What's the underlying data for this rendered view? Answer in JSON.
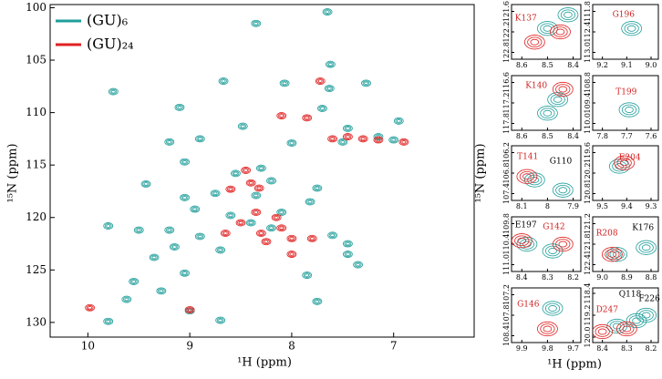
{
  "chart_data": [
    {
      "type": "contour",
      "xlabel": "¹H (ppm)",
      "ylabel": "¹⁵N (ppm)",
      "xlim": [
        10.37,
        6.21
      ],
      "ylim": [
        99.7,
        131.4
      ],
      "xticks": [
        10,
        9,
        8,
        7
      ],
      "yticks": [
        100,
        105,
        110,
        115,
        120,
        125,
        130
      ],
      "legend": "upper left",
      "series": [
        {
          "name": "(GU)₆",
          "color": "#1f9e9a",
          "x": [
            8.35,
            7.65,
            7.62,
            9.75,
            8.67,
            8.07,
            7.63,
            7.27,
            9.1,
            7.7,
            6.95,
            8.48,
            7.45,
            9.2,
            8.9,
            8.0,
            7.15,
            9.05,
            8.55,
            8.3,
            9.43,
            8.2,
            8.75,
            8.35,
            7.75,
            9.05,
            7.82,
            8.95,
            8.6,
            9.8,
            9.5,
            9.2,
            8.9,
            8.2,
            7.6,
            7.45,
            9.35,
            9.15,
            8.7,
            7.45,
            7.35,
            7.85,
            9.05,
            9.55,
            9.28,
            9.62,
            7.75,
            9.0,
            8.7,
            9.8,
            8.4,
            8.1,
            7.5,
            7.0
          ],
          "y": [
            101.5,
            100.4,
            105.4,
            108,
            107,
            107.2,
            107.7,
            107.2,
            109.5,
            109.6,
            110.8,
            111.3,
            111.5,
            112.8,
            112.5,
            112.9,
            112.3,
            114.7,
            115.8,
            115.3,
            116.8,
            116.5,
            117.7,
            117.9,
            117.2,
            118.1,
            118.5,
            119.2,
            119.8,
            120.8,
            121.2,
            121.2,
            121.8,
            121,
            121.7,
            122.5,
            123.8,
            122.8,
            123.1,
            123.5,
            124.5,
            125.5,
            125.3,
            126.1,
            127,
            127.8,
            128,
            128.9,
            129.8,
            129.9,
            120.5,
            119.5,
            112.8,
            112.6
          ]
        },
        {
          "name": "(GU)₂₄",
          "color": "#e02020",
          "x": [
            8.1,
            7.85,
            7.6,
            7.3,
            6.9,
            8.4,
            8.32,
            8.15,
            8.3,
            8.0,
            8.25,
            8.5,
            8.0,
            8.45,
            7.72,
            9.98,
            9.0,
            8.65,
            7.8,
            8.6,
            7.45,
            7.15,
            8.35,
            8.1
          ],
          "y": [
            110.3,
            110.5,
            112.5,
            112.5,
            112.8,
            116.7,
            117.2,
            120,
            121.5,
            122,
            122.3,
            120.5,
            123.5,
            115.5,
            107,
            128.6,
            128.8,
            121.5,
            122,
            117.3,
            112.3,
            112.6,
            119.5,
            121
          ]
        }
      ]
    },
    {
      "type": "contour",
      "annotations": [
        {
          "text": "K137",
          "color": "#d02020"
        }
      ],
      "xlim": [
        8.64,
        8.37
      ],
      "ylim": [
        121.4,
        123.0
      ],
      "xticks": [
        8.6,
        8.5,
        8.4
      ],
      "yticks": [
        121.6,
        122.2,
        122.8
      ],
      "series": [
        {
          "color": "#1f9e9a",
          "x": [
            8.5,
            8.42
          ],
          "y": [
            122.1,
            121.7
          ]
        },
        {
          "color": "#e02020",
          "x": [
            8.55,
            8.45
          ],
          "y": [
            122.5,
            122.2
          ]
        }
      ]
    },
    {
      "type": "contour",
      "annotations": [
        {
          "text": "G196",
          "color": "#d02020"
        }
      ],
      "xlim": [
        9.24,
        8.97
      ],
      "ylim": [
        111.6,
        113.2
      ],
      "xticks": [
        9.2,
        9.1,
        {
          "value": 9,
          "label": "9.0"
        }
      ],
      "yticks": [
        111.8,
        112.4,
        {
          "value": 113,
          "label": "113.0"
        }
      ],
      "series": [
        {
          "color": "#1f9e9a",
          "x": [
            9.08
          ],
          "y": [
            112.3
          ]
        },
        {
          "color": "#e02020",
          "x": [],
          "y": []
        }
      ]
    },
    {
      "type": "contour",
      "annotations": [
        {
          "text": "K140",
          "color": "#d02020"
        }
      ],
      "xlim": [
        8.64,
        8.37
      ],
      "ylim": [
        116.4,
        118.0
      ],
      "xticks": [
        8.6,
        8.5,
        8.4
      ],
      "yticks": [
        116.6,
        117.2,
        117.8
      ],
      "series": [
        {
          "color": "#1f9e9a",
          "x": [
            8.5,
            8.46
          ],
          "y": [
            117.5,
            117.1
          ]
        },
        {
          "color": "#e02020",
          "x": [
            8.44
          ],
          "y": [
            116.8
          ]
        }
      ]
    },
    {
      "type": "contour",
      "annotations": [
        {
          "text": "T199",
          "color": "#d02020"
        }
      ],
      "xlim": [
        7.84,
        7.57
      ],
      "ylim": [
        108.6,
        110.2
      ],
      "xticks": [
        7.8,
        7.7,
        7.6
      ],
      "yticks": [
        108.8,
        109.4,
        {
          "value": 110,
          "label": "110.0"
        }
      ],
      "series": [
        {
          "color": "#1f9e9a",
          "x": [
            7.69
          ],
          "y": [
            109.6
          ]
        },
        {
          "color": "#e02020",
          "x": [],
          "y": []
        }
      ]
    },
    {
      "type": "contour",
      "annotations": [
        {
          "text": "T141",
          "color": "#d02020"
        },
        {
          "text": "G110",
          "color": "#000000"
        }
      ],
      "xlim": [
        8.14,
        7.87
      ],
      "ylim": [
        106.0,
        107.6
      ],
      "xticks": [
        8.1,
        8.0,
        7.9
      ],
      "yticks": [
        106.2,
        106.8,
        107.4
      ],
      "series": [
        {
          "color": "#1f9e9a",
          "x": [
            8.05,
            7.94
          ],
          "y": [
            107.0,
            107.3
          ]
        },
        {
          "color": "#e02020",
          "x": [
            8.08
          ],
          "y": [
            106.9
          ]
        }
      ]
    },
    {
      "type": "contour",
      "annotations": [
        {
          "text": "E204",
          "color": "#d02020"
        }
      ],
      "xlim": [
        9.54,
        9.27
      ],
      "ylim": [
        119.4,
        121.0
      ],
      "xticks": [
        9.5,
        9.4,
        9.3
      ],
      "yticks": [
        119.6,
        120.2,
        120.8
      ],
      "series": [
        {
          "color": "#1f9e9a",
          "x": [
            9.43
          ],
          "y": [
            120.0
          ]
        },
        {
          "color": "#e02020",
          "x": [
            9.41
          ],
          "y": [
            119.9
          ]
        }
      ]
    },
    {
      "type": "contour",
      "annotations": [
        {
          "text": "E197",
          "color": "#000000"
        },
        {
          "text": "G142",
          "color": "#d02020"
        }
      ],
      "xlim": [
        8.44,
        8.17
      ],
      "ylim": [
        109.6,
        111.2
      ],
      "xticks": [
        8.4,
        8.3,
        8.2
      ],
      "yticks": [
        109.8,
        110.4,
        {
          "value": 111,
          "label": "111.0"
        }
      ],
      "series": [
        {
          "color": "#1f9e9a",
          "x": [
            8.38,
            8.28
          ],
          "y": [
            110.4,
            110.6
          ]
        },
        {
          "color": "#e02020",
          "x": [
            8.4,
            8.24
          ],
          "y": [
            110.3,
            110.4
          ]
        }
      ]
    },
    {
      "type": "contour",
      "annotations": [
        {
          "text": "R208",
          "color": "#d02020"
        },
        {
          "text": "K176",
          "color": "#000000"
        }
      ],
      "xlim": [
        9.04,
        8.77
      ],
      "ylim": [
        121.0,
        122.6
      ],
      "xticks": [
        {
          "value": 9,
          "label": "9.0"
        },
        8.9,
        8.8
      ],
      "yticks": [
        121.2,
        121.8,
        122.4
      ],
      "series": [
        {
          "color": "#1f9e9a",
          "x": [
            8.94,
            8.82
          ],
          "y": [
            122.1,
            121.9
          ]
        },
        {
          "color": "#e02020",
          "x": [
            8.96
          ],
          "y": [
            122.1
          ]
        }
      ]
    },
    {
      "type": "contour",
      "annotations": [
        {
          "text": "G146",
          "color": "#d02020"
        }
      ],
      "xlim": [
        9.94,
        9.67
      ],
      "ylim": [
        107.0,
        108.6
      ],
      "xticks": [
        9.9,
        9.8,
        9.7
      ],
      "yticks": [
        107.2,
        107.8,
        108.4
      ],
      "series": [
        {
          "color": "#1f9e9a",
          "x": [
            9.78
          ],
          "y": [
            107.6
          ]
        },
        {
          "color": "#e02020",
          "x": [
            9.8
          ],
          "y": [
            108.2
          ]
        }
      ]
    },
    {
      "type": "contour",
      "annotations": [
        {
          "text": "D247",
          "color": "#d02020"
        },
        {
          "text": "Q118",
          "color": "#000000"
        },
        {
          "text": "F226",
          "color": "#000000"
        }
      ],
      "xlim": [
        8.44,
        8.17
      ],
      "ylim": [
        118.2,
        120.2
      ],
      "xticks": [
        8.4,
        8.3,
        8.2
      ],
      "yticks": [
        118.4,
        119.2,
        {
          "value": 120,
          "label": "120.0"
        }
      ],
      "series": [
        {
          "color": "#1f9e9a",
          "x": [
            8.34,
            8.26,
            8.22
          ],
          "y": [
            119.6,
            119.4,
            119.2
          ]
        },
        {
          "color": "#e02020",
          "x": [
            8.4,
            8.3
          ],
          "y": [
            119.8,
            119.7
          ]
        }
      ]
    }
  ],
  "inset_axes": {
    "xlabel": "¹H (ppm)",
    "ylabel": "¹⁵N (ppm)"
  }
}
